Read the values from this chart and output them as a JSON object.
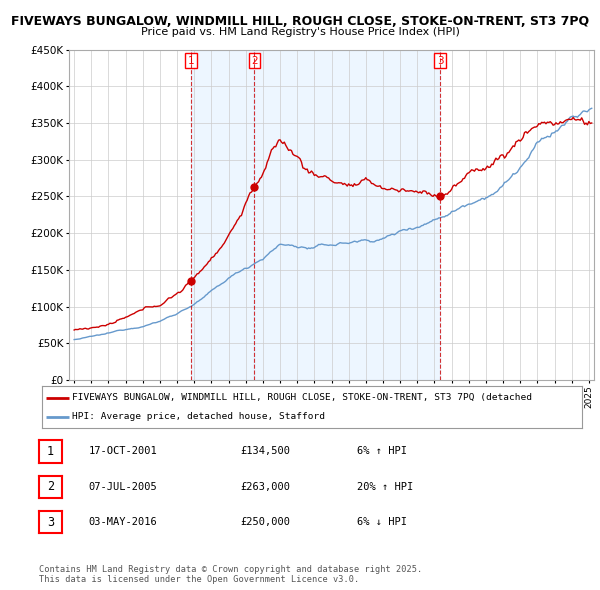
{
  "title_line1": "FIVEWAYS BUNGALOW, WINDMILL HILL, ROUGH CLOSE, STOKE-ON-TRENT, ST3 7PQ",
  "title_line2": "Price paid vs. HM Land Registry's House Price Index (HPI)",
  "ylim": [
    0,
    450000
  ],
  "yticks": [
    0,
    50000,
    100000,
    150000,
    200000,
    250000,
    300000,
    350000,
    400000,
    450000
  ],
  "sale_dates_num": [
    2001.79,
    2005.51,
    2016.34
  ],
  "sale_prices": [
    134500,
    263000,
    250000
  ],
  "sale_labels": [
    "1",
    "2",
    "3"
  ],
  "legend_property": "FIVEWAYS BUNGALOW, WINDMILL HILL, ROUGH CLOSE, STOKE-ON-TRENT, ST3 7PQ (detached",
  "legend_hpi": "HPI: Average price, detached house, Stafford",
  "table_data": [
    {
      "num": "1",
      "date": "17-OCT-2001",
      "price": "£134,500",
      "change": "6% ↑ HPI"
    },
    {
      "num": "2",
      "date": "07-JUL-2005",
      "price": "£263,000",
      "change": "20% ↑ HPI"
    },
    {
      "num": "3",
      "date": "03-MAY-2016",
      "price": "£250,000",
      "change": "6% ↓ HPI"
    }
  ],
  "footer": "Contains HM Land Registry data © Crown copyright and database right 2025.\nThis data is licensed under the Open Government Licence v3.0.",
  "property_color": "#cc0000",
  "hpi_color": "#6699cc",
  "hpi_fill_color": "#ddeeff",
  "vline_color": "#cc0000",
  "grid_color": "#cccccc",
  "background_color": "#ffffff"
}
